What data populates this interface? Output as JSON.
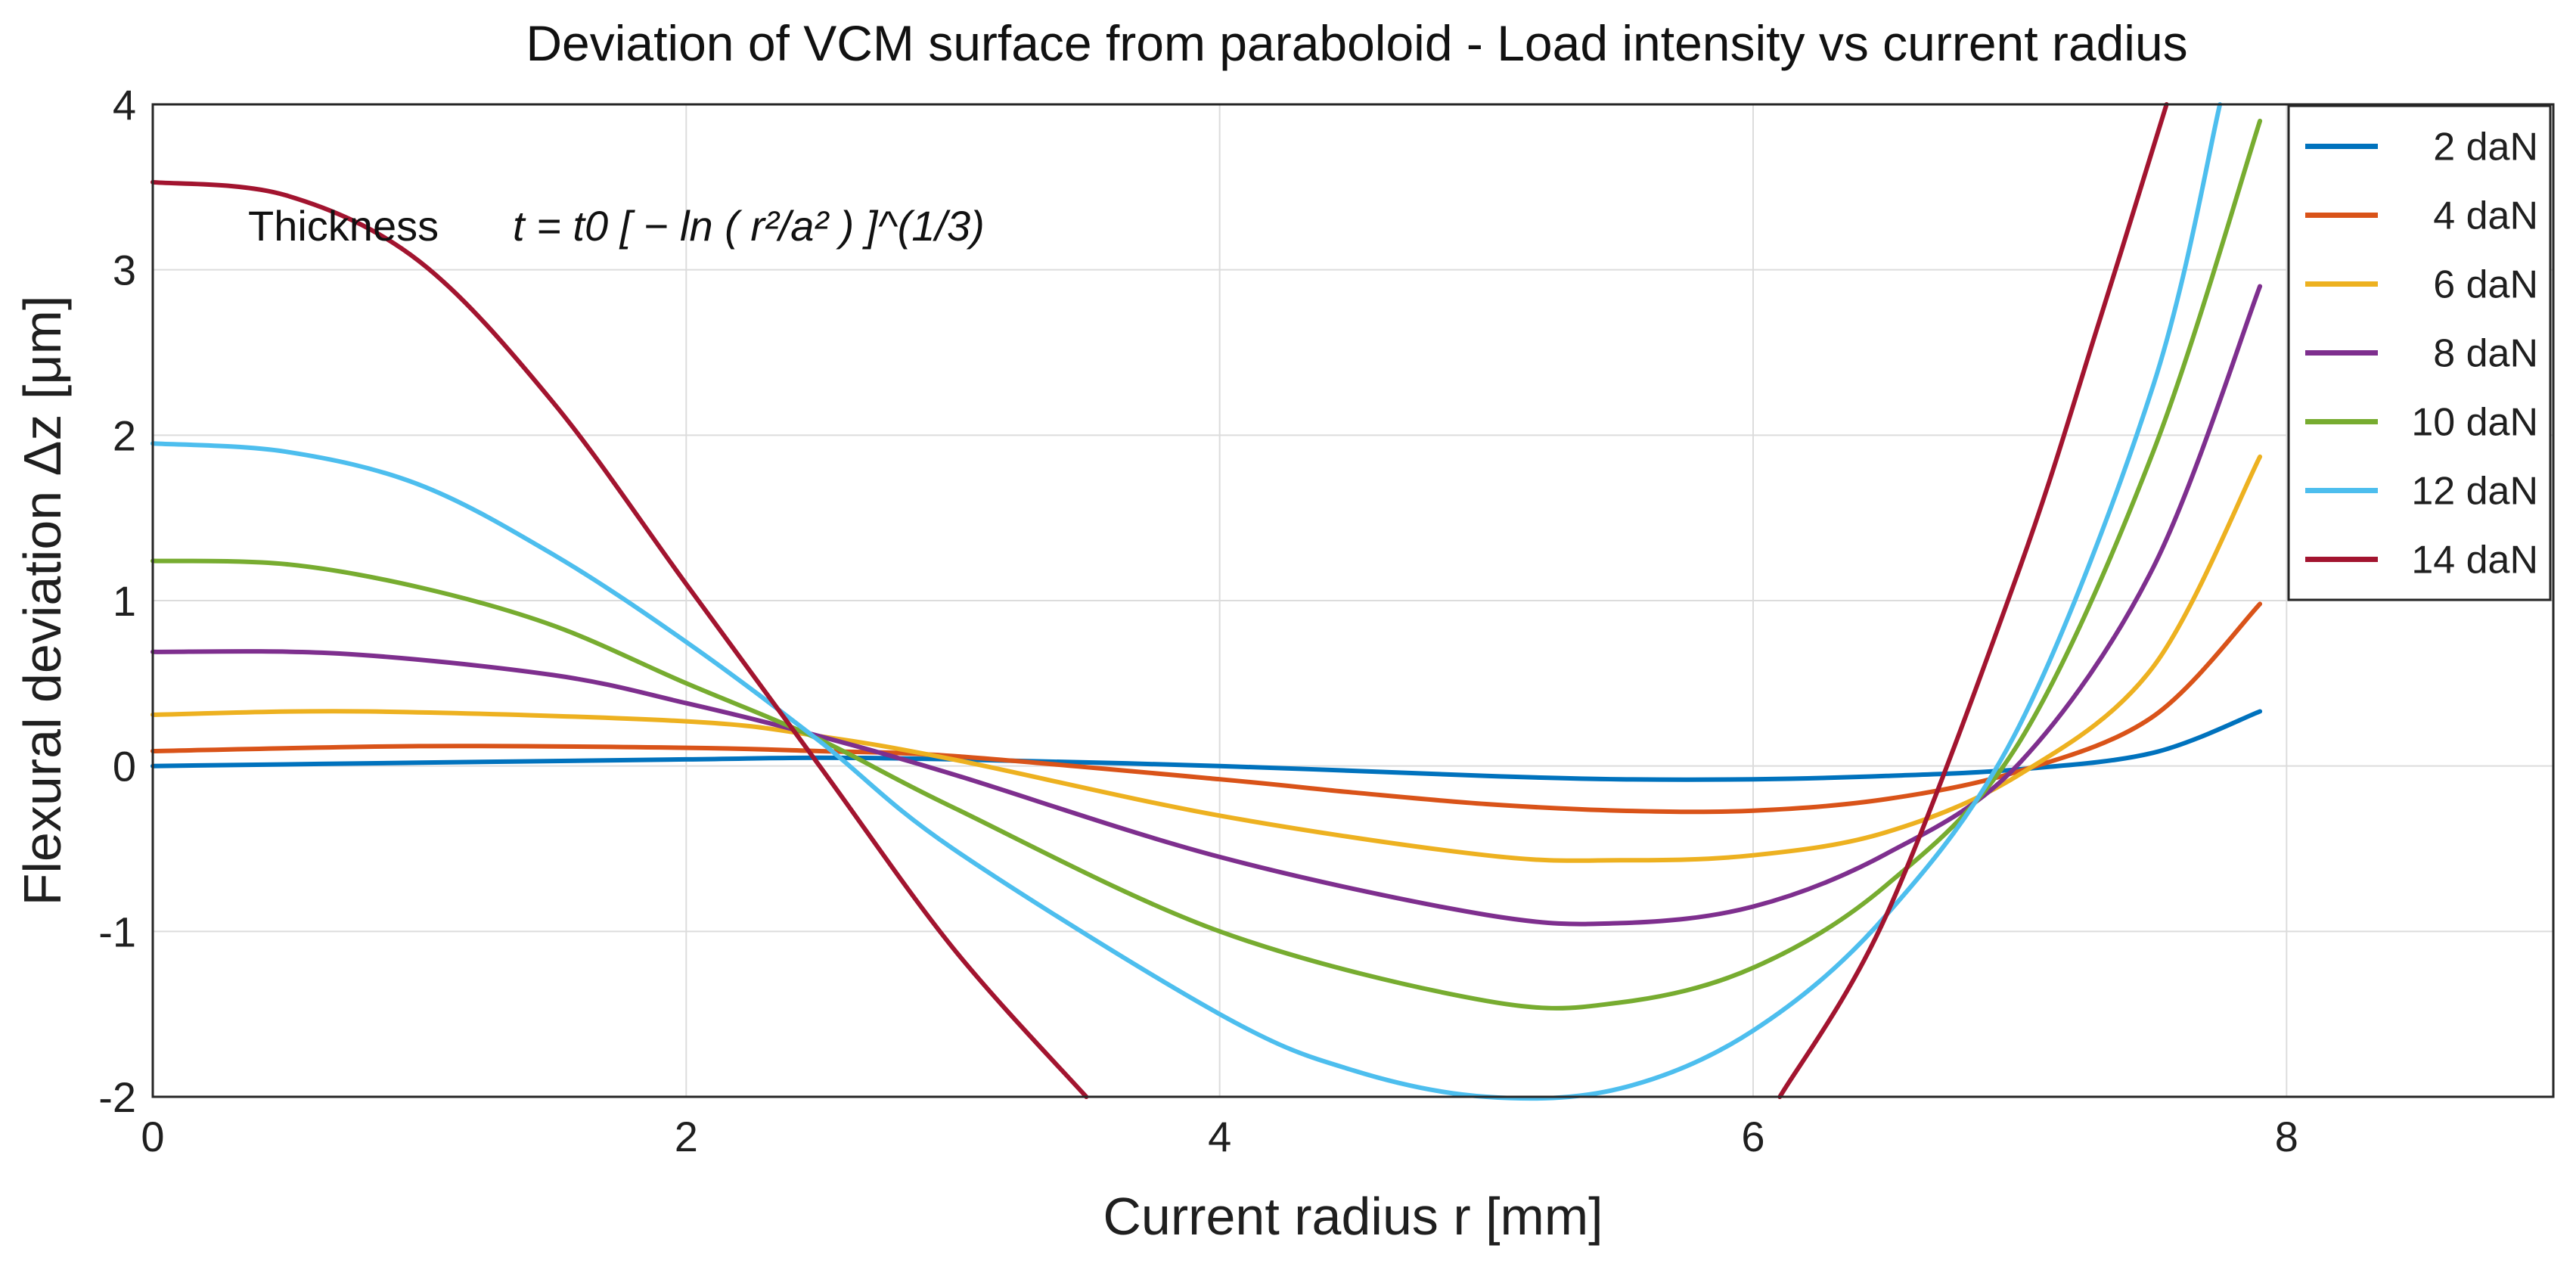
{
  "chart_data": {
    "type": "line",
    "title": "Deviation of VCM surface from paraboloid  -  Load intensity vs current radius",
    "xlabel": "Current radius  r  [mm]",
    "ylabel": "Flexural deviation  Δz  [μm]",
    "xlim": [
      0,
      9
    ],
    "ylim": [
      -2,
      4
    ],
    "grid": true,
    "legend_position": "top-right",
    "x_ticks": [
      "0",
      "2",
      "4",
      "6",
      "8"
    ],
    "y_ticks": [
      "-2",
      "-1",
      "0",
      "1",
      "2",
      "3",
      "4"
    ],
    "annotation": {
      "label": "Thickness",
      "formula": "t = t0 [ − ln ( r²/a² ) ]^(1/3)"
    },
    "series": [
      {
        "name": "2 daN",
        "color": "#0072BD",
        "x": [
          0,
          1,
          2,
          2.5,
          3,
          4,
          5,
          5.5,
          6,
          6.5,
          7,
          7.5,
          7.9
        ],
        "y": [
          0.0,
          0.02,
          0.04,
          0.05,
          0.04,
          0.0,
          -0.06,
          -0.08,
          -0.08,
          -0.06,
          -0.02,
          0.08,
          0.33
        ]
      },
      {
        "name": "4 daN",
        "color": "#D95319",
        "x": [
          0,
          1,
          2,
          2.5,
          3,
          4,
          4.5,
          5,
          5.5,
          6,
          6.5,
          7,
          7.5,
          7.9
        ],
        "y": [
          0.09,
          0.12,
          0.11,
          0.09,
          0.06,
          -0.08,
          -0.16,
          -0.23,
          -0.27,
          -0.27,
          -0.2,
          -0.03,
          0.3,
          0.98
        ]
      },
      {
        "name": "6 daN",
        "color": "#EDB120",
        "x": [
          0,
          0.8,
          2,
          2.5,
          3,
          4,
          5,
          5.5,
          6,
          6.5,
          7,
          7.5,
          7.9
        ],
        "y": [
          0.31,
          0.33,
          0.27,
          0.18,
          0.04,
          -0.3,
          -0.54,
          -0.57,
          -0.54,
          -0.4,
          -0.05,
          0.6,
          1.87
        ]
      },
      {
        "name": "8 daN",
        "color": "#7E2F8E",
        "x": [
          0,
          0.7,
          1.5,
          2,
          2.5,
          3,
          4,
          5,
          5.5,
          6,
          6.5,
          7,
          7.5,
          7.9
        ],
        "y": [
          0.69,
          0.68,
          0.55,
          0.38,
          0.18,
          -0.05,
          -0.55,
          -0.9,
          -0.95,
          -0.85,
          -0.53,
          0.02,
          1.2,
          2.9
        ]
      },
      {
        "name": "10 daN",
        "color": "#77AC30",
        "x": [
          0,
          0.5,
          1,
          1.5,
          2,
          2.5,
          3,
          4,
          5,
          5.5,
          6,
          6.5,
          7,
          7.5,
          7.9
        ],
        "y": [
          1.24,
          1.22,
          1.08,
          0.85,
          0.5,
          0.16,
          -0.25,
          -1.0,
          -1.42,
          -1.43,
          -1.22,
          -0.72,
          0.15,
          1.9,
          3.9
        ]
      },
      {
        "name": "12 daN",
        "color": "#4DBEEE",
        "x": [
          0,
          0.5,
          1,
          1.5,
          2,
          2.5,
          3,
          4,
          4.5,
          5,
          5.5,
          6,
          6.5,
          7,
          7.5,
          7.75
        ],
        "y": [
          1.95,
          1.9,
          1.7,
          1.28,
          0.75,
          0.15,
          -0.5,
          -1.5,
          -1.84,
          -2.0,
          -1.95,
          -1.6,
          -0.9,
          0.25,
          2.3,
          4.0
        ]
      },
      {
        "name": "14 daN",
        "color": "#A2142F",
        "x": [
          0,
          0.5,
          1,
          1.5,
          2,
          2.5,
          3,
          3.5,
          6.1,
          6.5,
          7,
          7.3,
          7.55
        ],
        "y": [
          3.53,
          3.45,
          3.05,
          2.2,
          1.1,
          0.0,
          -1.1,
          -2.0,
          -2.0,
          -0.9,
          1.2,
          2.7,
          4.0
        ]
      }
    ]
  }
}
